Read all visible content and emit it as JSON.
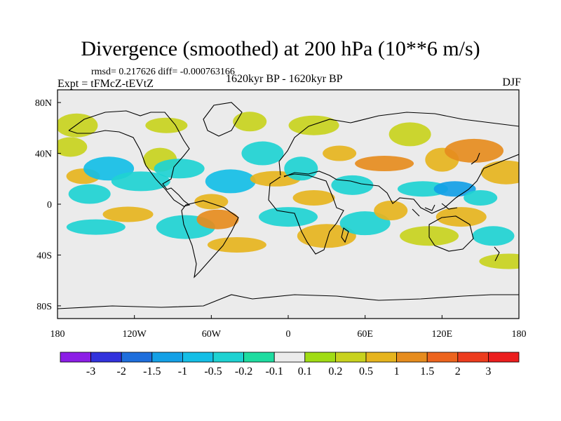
{
  "chart_data": {
    "type": "heatmap",
    "title": "Divergence (smoothed) at 200 hPa (10**6 m/s)",
    "stats_text": "rmsd= 0.217626 diff= -0.000763166",
    "left_label": "Expt = tFMcZ-tEVtZ",
    "center_label": "1620kyr BP - 1620kyr BP",
    "right_label": "DJF",
    "x_ticks": [
      "180",
      "120W",
      "60W",
      "0",
      "60E",
      "120E",
      "180"
    ],
    "y_ticks": [
      "80N",
      "40N",
      "0",
      "40S",
      "80S"
    ],
    "xlim": [
      -180,
      180
    ],
    "ylim": [
      -90,
      90
    ],
    "colorbar": {
      "labels": [
        "-3",
        "-2",
        "-1.5",
        "-1",
        "-0.5",
        "-0.2",
        "-0.1",
        "0.1",
        "0.2",
        "0.5",
        "1",
        "1.5",
        "2",
        "3"
      ],
      "colors": [
        "#8c1ee6",
        "#3232dc",
        "#1e6edc",
        "#14a0e6",
        "#14bee6",
        "#1ed2d2",
        "#1edca0",
        "#ebebeb",
        "#a0dc14",
        "#c8d21e",
        "#e6b41e",
        "#e68c1e",
        "#ec641e",
        "#ec3c1e",
        "#eb1e1e"
      ]
    },
    "fields": [
      {
        "lon": -160,
        "lat": 22,
        "value": 0.5
      },
      {
        "lon": -155,
        "lat": 8,
        "value": -0.5
      },
      {
        "lon": -140,
        "lat": 28,
        "value": -1.0
      },
      {
        "lon": -150,
        "lat": -18,
        "value": -0.5
      },
      {
        "lon": -170,
        "lat": 45,
        "value": 0.2
      },
      {
        "lon": -165,
        "lat": 62,
        "value": 0.2
      },
      {
        "lon": -125,
        "lat": -8,
        "value": 0.5
      },
      {
        "lon": -115,
        "lat": 18,
        "value": -0.5
      },
      {
        "lon": -100,
        "lat": 35,
        "value": 0.2
      },
      {
        "lon": -95,
        "lat": 62,
        "value": 0.2
      },
      {
        "lon": -85,
        "lat": 28,
        "value": -0.5
      },
      {
        "lon": -80,
        "lat": -18,
        "value": -0.5
      },
      {
        "lon": -60,
        "lat": 2,
        "value": 0.5
      },
      {
        "lon": -55,
        "lat": -12,
        "value": 1.0
      },
      {
        "lon": -45,
        "lat": 18,
        "value": -1.0
      },
      {
        "lon": -40,
        "lat": -32,
        "value": 0.5
      },
      {
        "lon": -30,
        "lat": 65,
        "value": 0.2
      },
      {
        "lon": -20,
        "lat": 40,
        "value": -0.5
      },
      {
        "lon": -10,
        "lat": 20,
        "value": 0.5
      },
      {
        "lon": 0,
        "lat": -10,
        "value": -0.5
      },
      {
        "lon": 10,
        "lat": 28,
        "value": -0.5
      },
      {
        "lon": 20,
        "lat": 5,
        "value": 0.5
      },
      {
        "lon": 20,
        "lat": 62,
        "value": 0.2
      },
      {
        "lon": 30,
        "lat": -25,
        "value": 0.5
      },
      {
        "lon": 40,
        "lat": 40,
        "value": 0.5
      },
      {
        "lon": 50,
        "lat": 15,
        "value": -0.5
      },
      {
        "lon": 60,
        "lat": -15,
        "value": -0.5
      },
      {
        "lon": 75,
        "lat": 32,
        "value": 1.0
      },
      {
        "lon": 80,
        "lat": -5,
        "value": 0.5
      },
      {
        "lon": 95,
        "lat": 55,
        "value": 0.2
      },
      {
        "lon": 105,
        "lat": 12,
        "value": -0.5
      },
      {
        "lon": 110,
        "lat": -25,
        "value": 0.2
      },
      {
        "lon": 120,
        "lat": 35,
        "value": 0.5
      },
      {
        "lon": 130,
        "lat": 12,
        "value": -1.5
      },
      {
        "lon": 135,
        "lat": -10,
        "value": 0.5
      },
      {
        "lon": 145,
        "lat": 42,
        "value": 1.0
      },
      {
        "lon": 150,
        "lat": 5,
        "value": -0.5
      },
      {
        "lon": 160,
        "lat": -25,
        "value": -0.5
      },
      {
        "lon": 170,
        "lat": 25,
        "value": 0.5
      },
      {
        "lon": 172,
        "lat": -45,
        "value": 0.2
      }
    ]
  }
}
